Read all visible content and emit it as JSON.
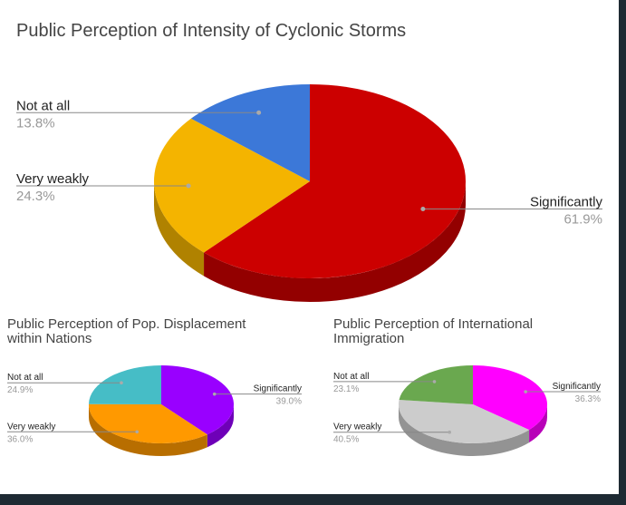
{
  "chart_data": [
    {
      "type": "pie",
      "title": "Public Perception of Intensity of Cyclonic Storms",
      "categories": [
        "Significantly",
        "Very weakly",
        "Not at all"
      ],
      "values": [
        61.9,
        24.3,
        13.8
      ],
      "value_labels": [
        "61.9%",
        "24.3%",
        "13.8%"
      ],
      "colors": [
        "#cc0000",
        "#f4b400",
        "#3c78d8"
      ]
    },
    {
      "type": "pie",
      "title": "Public Perception of Pop. Displacement within Nations",
      "categories": [
        "Significantly",
        "Very weakly",
        "Not at all"
      ],
      "values": [
        39.0,
        36.0,
        24.9
      ],
      "value_labels": [
        "39.0%",
        "36.0%",
        "24.9%"
      ],
      "colors": [
        "#9900ff",
        "#ff9900",
        "#46bdc6"
      ]
    },
    {
      "type": "pie",
      "title": "Public Perception of International Immigration",
      "categories": [
        "Significantly",
        "Very weakly",
        "Not at all"
      ],
      "values": [
        36.3,
        40.5,
        23.1
      ],
      "value_labels": [
        "36.3%",
        "40.5%",
        "23.1%"
      ],
      "colors": [
        "#ff00ff",
        "#cccccc",
        "#6aa84f"
      ]
    }
  ]
}
